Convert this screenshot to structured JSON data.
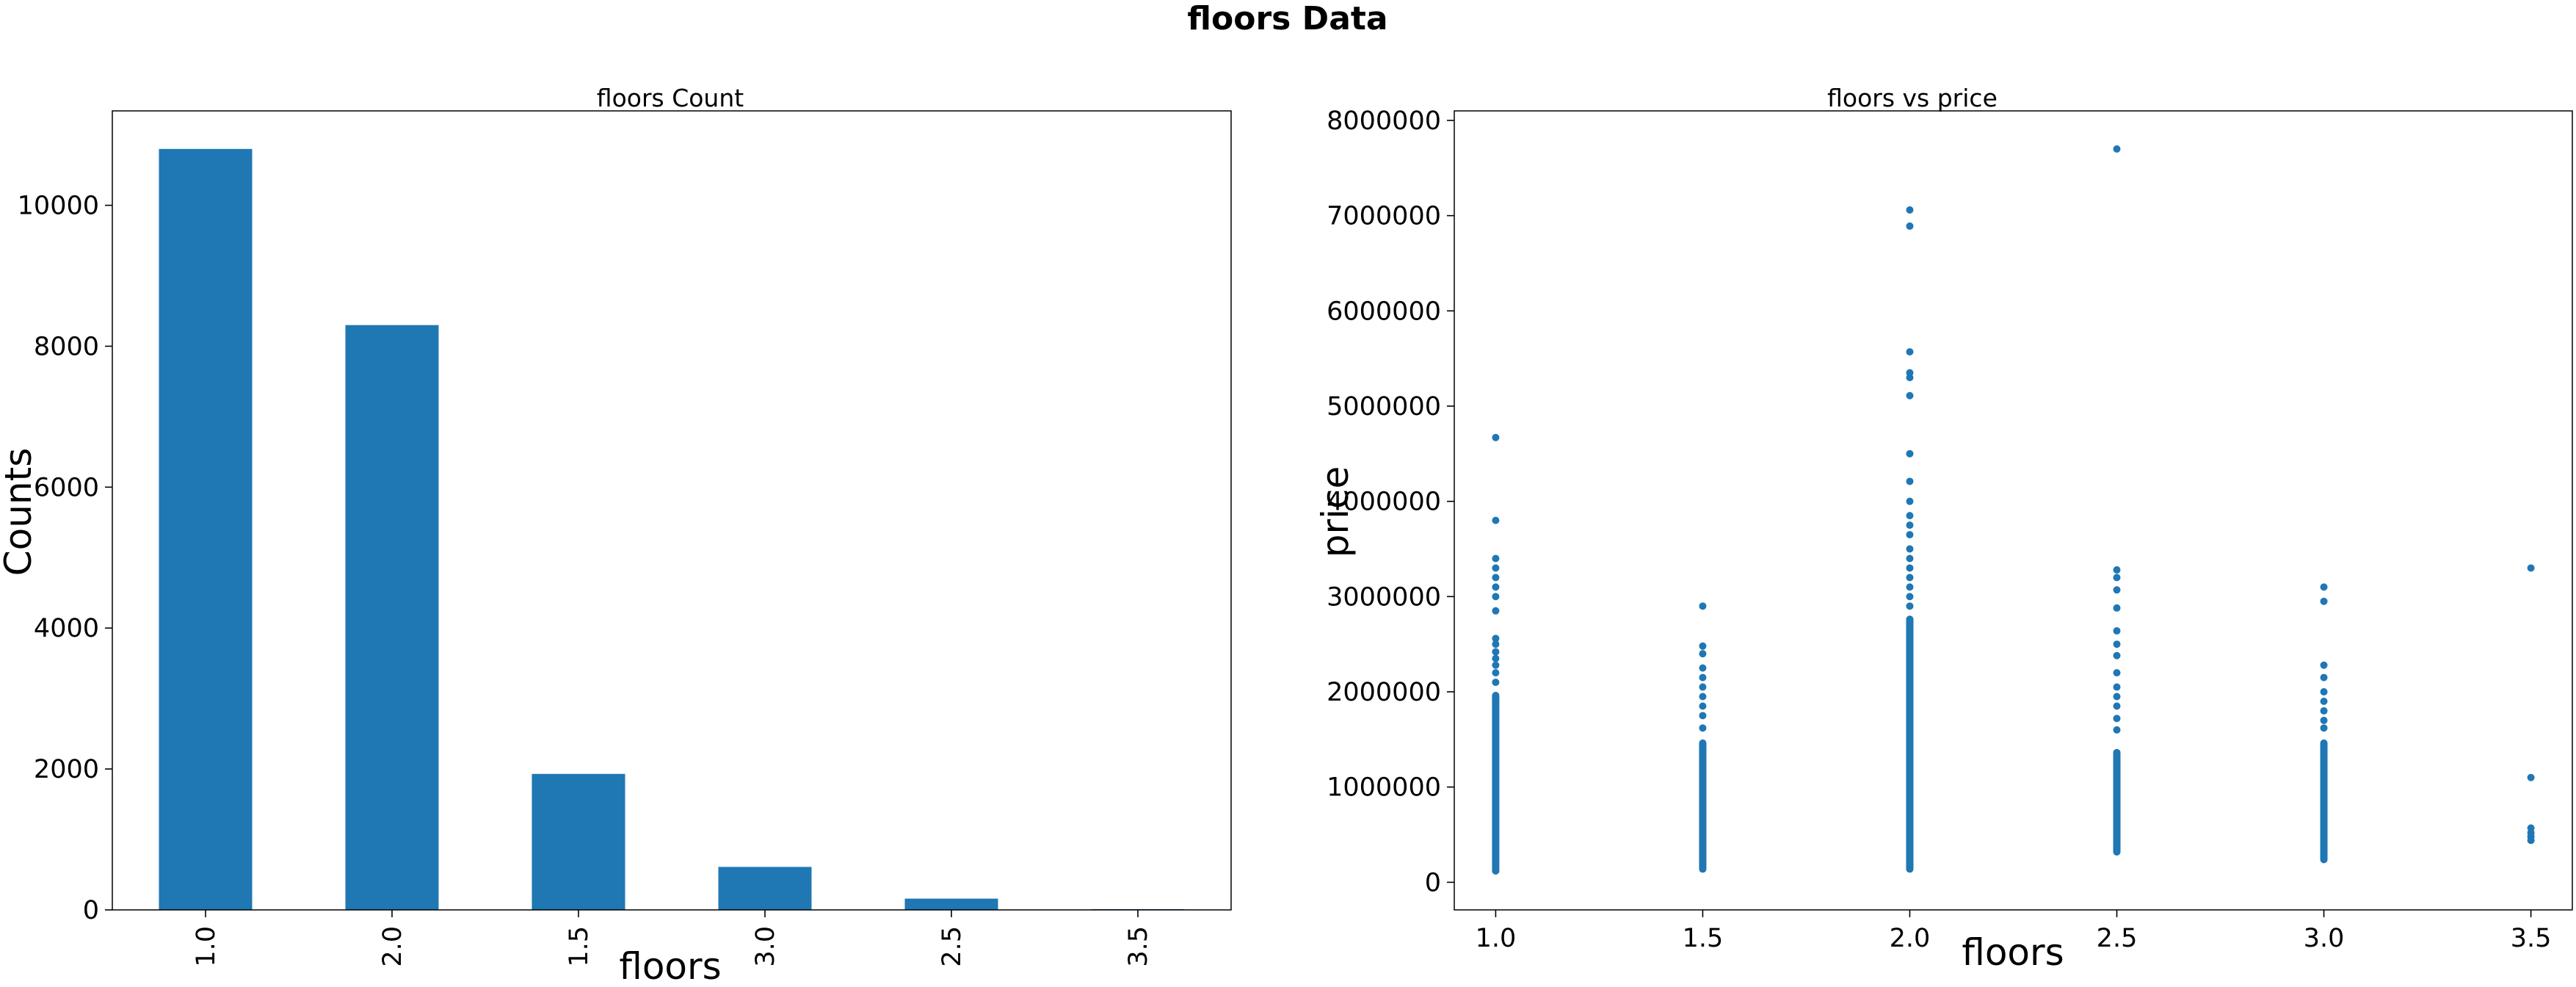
{
  "suptitle": "floors Data",
  "chart_data": [
    {
      "type": "bar",
      "title": "floors Count",
      "xlabel": "floors",
      "ylabel": "Counts",
      "categories": [
        "1.0",
        "2.0",
        "1.5",
        "3.0",
        "2.5",
        "3.5"
      ],
      "values": [
        10800,
        8300,
        1930,
        610,
        160,
        10
      ],
      "ylim": [
        0,
        11340
      ],
      "yticks": [
        0,
        2000,
        4000,
        6000,
        8000,
        10000
      ],
      "ytick_labels": [
        "0",
        "2000",
        "4000",
        "6000",
        "8000",
        "10000"
      ],
      "color": "#1f77b4",
      "grid": false,
      "legend": "none"
    },
    {
      "type": "scatter",
      "title": "floors vs price",
      "xlabel": "floors",
      "ylabel": "price",
      "xlim": [
        0.9,
        3.6
      ],
      "ylim": [
        -290000,
        8100000
      ],
      "xticks": [
        1.0,
        1.5,
        2.0,
        2.5,
        3.0,
        3.5
      ],
      "xtick_labels": [
        "1.0",
        "1.5",
        "2.0",
        "2.5",
        "3.0",
        "3.5"
      ],
      "yticks": [
        0,
        1000000,
        2000000,
        3000000,
        4000000,
        5000000,
        6000000,
        7000000,
        8000000
      ],
      "ytick_labels": [
        "0",
        "1000000",
        "2000000",
        "3000000",
        "4000000",
        "5000000",
        "6000000",
        "7000000",
        "8000000"
      ],
      "color": "#1f77b4",
      "grid": false,
      "legend": "none",
      "dense_ranges": [
        {
          "x": 1.0,
          "y_from": 80000,
          "y_to": 2000000
        },
        {
          "x": 1.5,
          "y_from": 100000,
          "y_to": 1500000
        },
        {
          "x": 2.0,
          "y_from": 100000,
          "y_to": 2800000
        },
        {
          "x": 2.5,
          "y_from": 280000,
          "y_to": 1400000
        },
        {
          "x": 3.0,
          "y_from": 200000,
          "y_to": 1500000
        }
      ],
      "points": [
        {
          "x": 1.0,
          "y": 4670000
        },
        {
          "x": 1.0,
          "y": 3800000
        },
        {
          "x": 1.0,
          "y": 3400000
        },
        {
          "x": 1.0,
          "y": 3300000
        },
        {
          "x": 1.0,
          "y": 3200000
        },
        {
          "x": 1.0,
          "y": 3100000
        },
        {
          "x": 1.0,
          "y": 3000000
        },
        {
          "x": 1.0,
          "y": 2850000
        },
        {
          "x": 1.0,
          "y": 2560000
        },
        {
          "x": 1.0,
          "y": 2500000
        },
        {
          "x": 1.0,
          "y": 2420000
        },
        {
          "x": 1.0,
          "y": 2350000
        },
        {
          "x": 1.0,
          "y": 2280000
        },
        {
          "x": 1.0,
          "y": 2200000
        },
        {
          "x": 1.0,
          "y": 2100000
        },
        {
          "x": 1.5,
          "y": 2900000
        },
        {
          "x": 1.5,
          "y": 2480000
        },
        {
          "x": 1.5,
          "y": 2400000
        },
        {
          "x": 1.5,
          "y": 2250000
        },
        {
          "x": 1.5,
          "y": 2150000
        },
        {
          "x": 1.5,
          "y": 2050000
        },
        {
          "x": 1.5,
          "y": 1950000
        },
        {
          "x": 1.5,
          "y": 1850000
        },
        {
          "x": 1.5,
          "y": 1750000
        },
        {
          "x": 1.5,
          "y": 1620000
        },
        {
          "x": 2.0,
          "y": 7060000
        },
        {
          "x": 2.0,
          "y": 6890000
        },
        {
          "x": 2.0,
          "y": 5570000
        },
        {
          "x": 2.0,
          "y": 5350000
        },
        {
          "x": 2.0,
          "y": 5300000
        },
        {
          "x": 2.0,
          "y": 5110000
        },
        {
          "x": 2.0,
          "y": 4500000
        },
        {
          "x": 2.0,
          "y": 4210000
        },
        {
          "x": 2.0,
          "y": 4000000
        },
        {
          "x": 2.0,
          "y": 3850000
        },
        {
          "x": 2.0,
          "y": 3750000
        },
        {
          "x": 2.0,
          "y": 3650000
        },
        {
          "x": 2.0,
          "y": 3500000
        },
        {
          "x": 2.0,
          "y": 3400000
        },
        {
          "x": 2.0,
          "y": 3300000
        },
        {
          "x": 2.0,
          "y": 3200000
        },
        {
          "x": 2.0,
          "y": 3100000
        },
        {
          "x": 2.0,
          "y": 3000000
        },
        {
          "x": 2.0,
          "y": 2900000
        },
        {
          "x": 2.5,
          "y": 7700000
        },
        {
          "x": 2.5,
          "y": 3280000
        },
        {
          "x": 2.5,
          "y": 3200000
        },
        {
          "x": 2.5,
          "y": 3070000
        },
        {
          "x": 2.5,
          "y": 2880000
        },
        {
          "x": 2.5,
          "y": 2640000
        },
        {
          "x": 2.5,
          "y": 2500000
        },
        {
          "x": 2.5,
          "y": 2380000
        },
        {
          "x": 2.5,
          "y": 2200000
        },
        {
          "x": 2.5,
          "y": 2050000
        },
        {
          "x": 2.5,
          "y": 1950000
        },
        {
          "x": 2.5,
          "y": 1850000
        },
        {
          "x": 2.5,
          "y": 1720000
        },
        {
          "x": 2.5,
          "y": 1600000
        },
        {
          "x": 3.0,
          "y": 3100000
        },
        {
          "x": 3.0,
          "y": 2950000
        },
        {
          "x": 3.0,
          "y": 2280000
        },
        {
          "x": 3.0,
          "y": 2150000
        },
        {
          "x": 3.0,
          "y": 2000000
        },
        {
          "x": 3.0,
          "y": 1900000
        },
        {
          "x": 3.0,
          "y": 1800000
        },
        {
          "x": 3.0,
          "y": 1700000
        },
        {
          "x": 3.0,
          "y": 1620000
        },
        {
          "x": 3.5,
          "y": 3300000
        },
        {
          "x": 3.5,
          "y": 1100000
        },
        {
          "x": 3.5,
          "y": 570000
        },
        {
          "x": 3.5,
          "y": 520000
        },
        {
          "x": 3.5,
          "y": 480000
        },
        {
          "x": 3.5,
          "y": 440000
        }
      ]
    }
  ]
}
